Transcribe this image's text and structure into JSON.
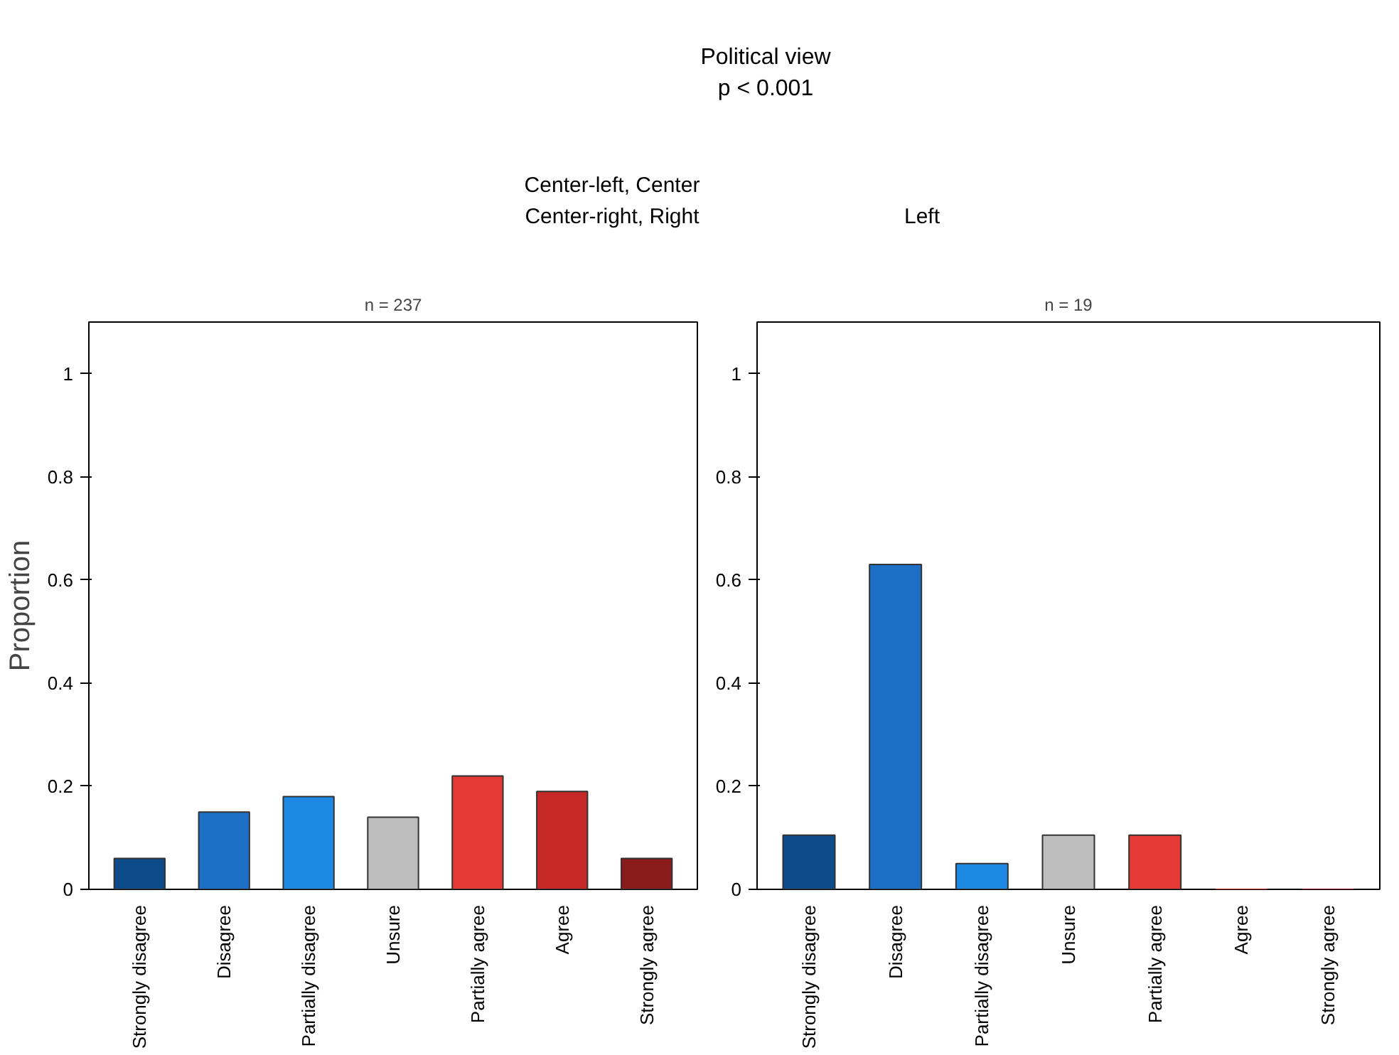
{
  "chart_data": [
    {
      "type": "bar",
      "title": "n = 237",
      "ylabel": "Proportion",
      "categories": [
        "Strongly disagree",
        "Disagree",
        "Partially disagree",
        "Unsure",
        "Partially agree",
        "Agree",
        "Strongly agree"
      ],
      "values": [
        0.06,
        0.15,
        0.18,
        0.14,
        0.22,
        0.19,
        0.06
      ],
      "colors": [
        "#0d4a8a",
        "#1c6fc4",
        "#1e88e5",
        "#bdbdbd",
        "#e53935",
        "#c62828",
        "#8b1a1a"
      ],
      "ylim": [
        0,
        1.1
      ],
      "yticks": [
        0,
        0.2,
        0.4,
        0.6,
        0.8,
        1
      ],
      "annotations": [
        "Political view",
        "p < 0.001",
        "Center-left, Center",
        "Center-right, Right"
      ]
    },
    {
      "type": "bar",
      "title": "n = 19",
      "categories": [
        "Strongly disagree",
        "Disagree",
        "Partially disagree",
        "Unsure",
        "Partially agree",
        "Agree",
        "Strongly agree"
      ],
      "values": [
        0.105,
        0.63,
        0.05,
        0.105,
        0.105,
        0,
        0
      ],
      "colors": [
        "#0d4a8a",
        "#1c6fc4",
        "#1e88e5",
        "#bdbdbd",
        "#e53935",
        "#c62828",
        "#8b1a1a"
      ],
      "ylim": [
        0,
        1.1
      ],
      "yticks": [
        0,
        0.2,
        0.4,
        0.6,
        0.8,
        1
      ],
      "annotations": [
        "Left"
      ]
    }
  ]
}
